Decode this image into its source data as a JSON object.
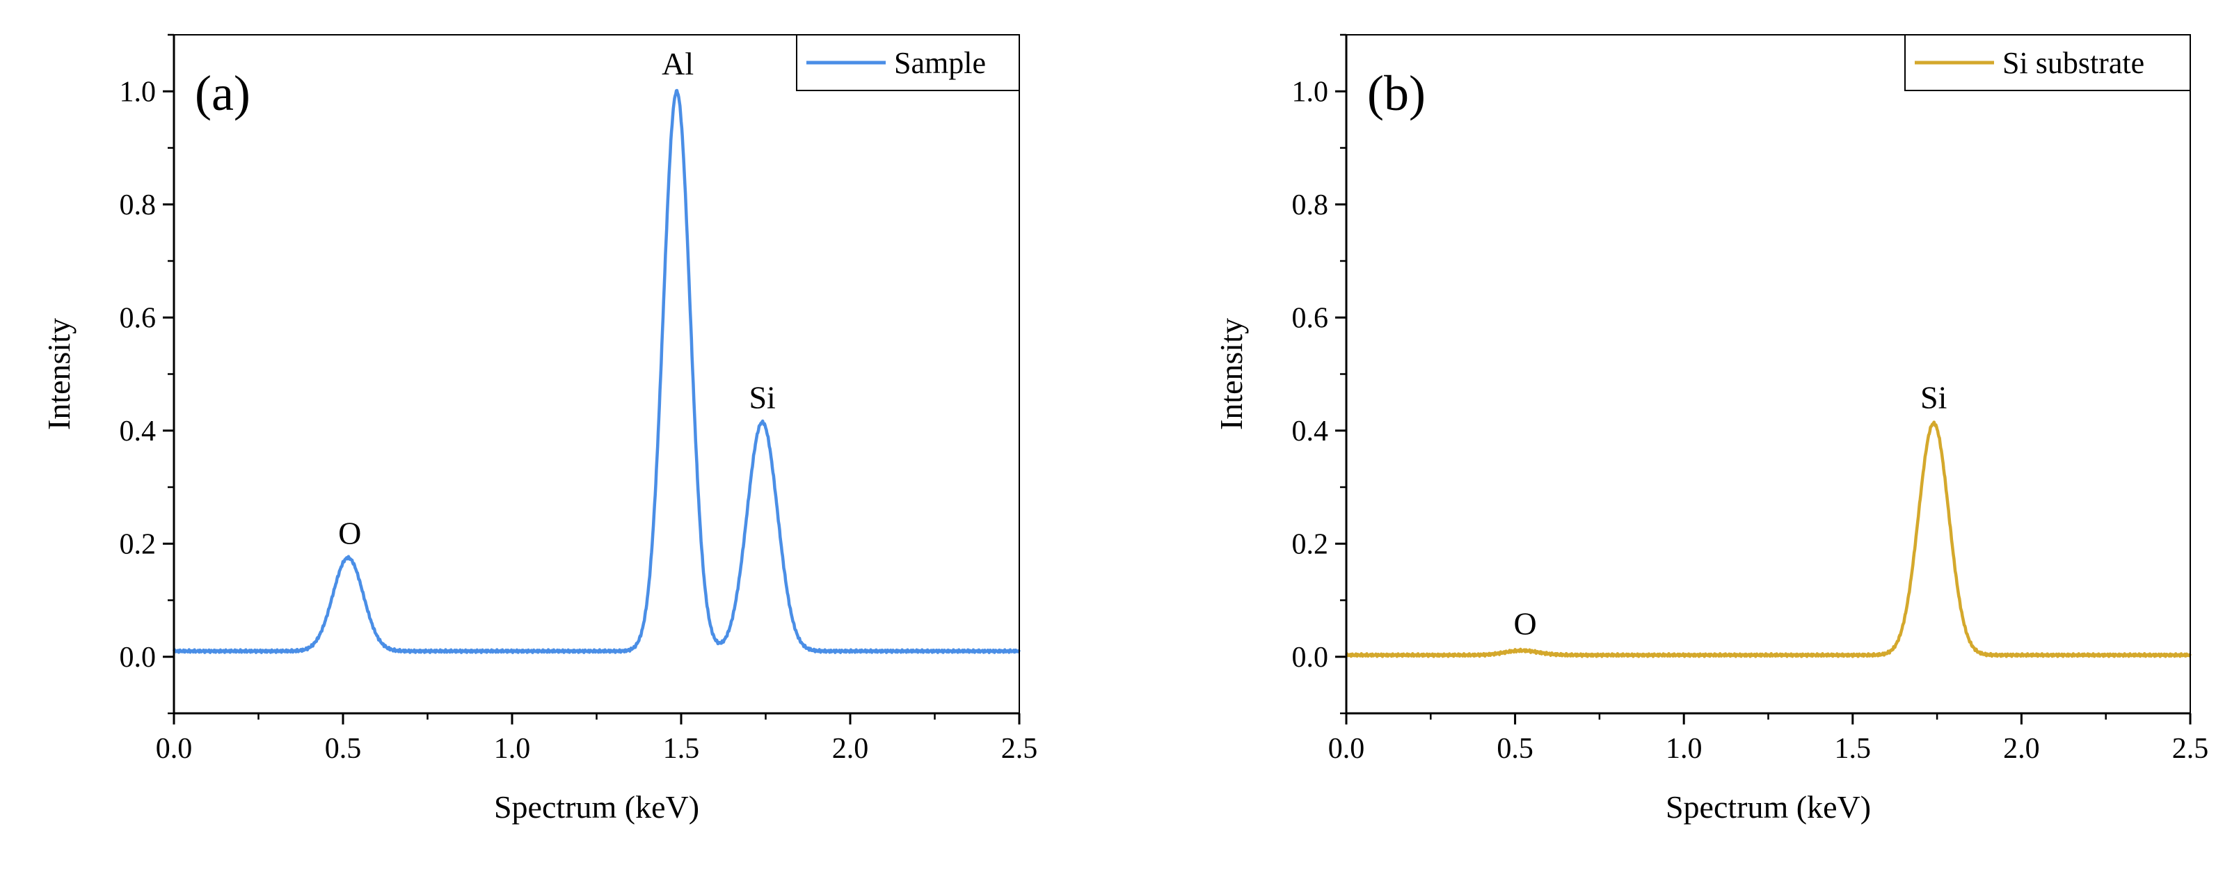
{
  "chart_data": [
    {
      "type": "line",
      "panel_label": "(a)",
      "xlabel": "Spectrum (keV)",
      "ylabel": "Intensity",
      "xlim": [
        0.0,
        2.5
      ],
      "ylim": [
        -0.1,
        1.1
      ],
      "xticks": [
        0.0,
        0.5,
        1.0,
        1.5,
        2.0,
        2.5
      ],
      "xtick_labels": [
        "0.0",
        "0.5",
        "1.0",
        "1.5",
        "2.0",
        "2.5"
      ],
      "yticks": [
        0.0,
        0.2,
        0.4,
        0.6,
        0.8,
        1.0
      ],
      "ytick_labels": [
        "0.0",
        "0.2",
        "0.4",
        "0.6",
        "0.8",
        "1.0"
      ],
      "grid": false,
      "legend_position": "top-right",
      "series": [
        {
          "name": "Sample",
          "color": "#4a8ee6",
          "baseline": 0.01,
          "peaks": [
            {
              "element": "O",
              "center": 0.515,
              "height": 0.165,
              "width": 0.045
            },
            {
              "element": "Al",
              "center": 1.487,
              "height": 0.99,
              "width": 0.04
            },
            {
              "element": "Si",
              "center": 1.74,
              "height": 0.405,
              "width": 0.045
            }
          ]
        }
      ],
      "annotations": [
        {
          "text": "O",
          "x": 0.52,
          "y": 0.2
        },
        {
          "text": "Al",
          "x": 1.49,
          "y": 1.03
        },
        {
          "text": "Si",
          "x": 1.74,
          "y": 0.44
        }
      ]
    },
    {
      "type": "line",
      "panel_label": "(b)",
      "xlabel": "Spectrum (keV)",
      "ylabel": "Intensity",
      "xlim": [
        0.0,
        2.5
      ],
      "ylim": [
        -0.1,
        1.1
      ],
      "xticks": [
        0.0,
        0.5,
        1.0,
        1.5,
        2.0,
        2.5
      ],
      "xtick_labels": [
        "0.0",
        "0.5",
        "1.0",
        "1.5",
        "2.0",
        "2.5"
      ],
      "yticks": [
        0.0,
        0.2,
        0.4,
        0.6,
        0.8,
        1.0
      ],
      "ytick_labels": [
        "0.0",
        "0.2",
        "0.4",
        "0.6",
        "0.8",
        "1.0"
      ],
      "grid": false,
      "legend_position": "top-right",
      "series": [
        {
          "name": "Si substrate",
          "color": "#d4a82c",
          "baseline": 0.003,
          "peaks": [
            {
              "element": "O",
              "center": 0.52,
              "height": 0.008,
              "width": 0.05
            },
            {
              "element": "Si",
              "center": 1.74,
              "height": 0.41,
              "width": 0.045
            }
          ]
        }
      ],
      "annotations": [
        {
          "text": "O",
          "x": 0.53,
          "y": 0.04
        },
        {
          "text": "Si",
          "x": 1.74,
          "y": 0.44
        }
      ]
    }
  ]
}
